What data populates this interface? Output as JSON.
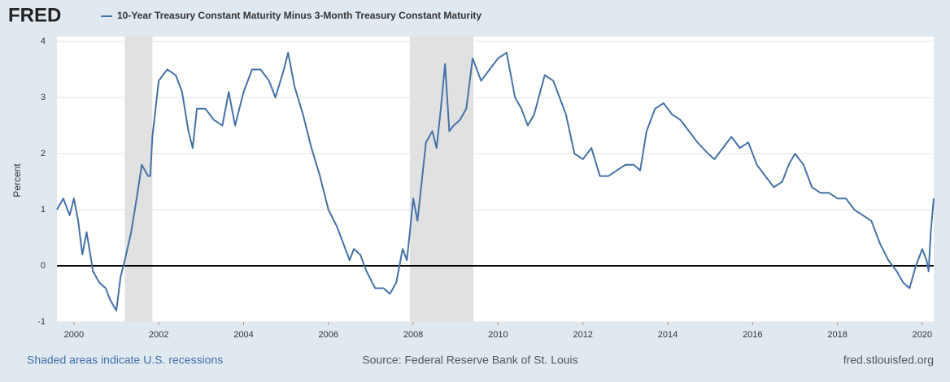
{
  "chart_data": {
    "type": "line",
    "logo": "FRED",
    "y_label": "Percent",
    "note": "Shaded areas indicate U.S. recessions",
    "source": "Source: Federal Reserve Bank of St. Louis",
    "url": "fred.stlouisfed.org",
    "xlim": [
      1999.6,
      2020.27
    ],
    "xticks": [
      2000,
      2002,
      2004,
      2006,
      2008,
      2010,
      2012,
      2014,
      2016,
      2018,
      2020
    ],
    "ylim": [
      -1,
      4
    ],
    "yticks": [
      -1,
      0,
      1,
      2,
      3,
      4
    ],
    "grid": true,
    "recessions": [
      [
        2001.2,
        2001.85
      ],
      [
        2007.92,
        2009.42
      ]
    ],
    "x": [
      1999.6,
      1999.75,
      1999.9,
      2000.0,
      2000.1,
      2000.2,
      2000.3,
      2000.45,
      2000.6,
      2000.75,
      2000.85,
      2001.0,
      2001.1,
      2001.2,
      2001.35,
      2001.5,
      2001.6,
      2001.75,
      2001.8,
      2001.85,
      2002.0,
      2002.2,
      2002.4,
      2002.55,
      2002.7,
      2002.8,
      2002.9,
      2003.1,
      2003.3,
      2003.5,
      2003.65,
      2003.8,
      2004.0,
      2004.2,
      2004.4,
      2004.6,
      2004.75,
      2004.95,
      2005.05,
      2005.2,
      2005.4,
      2005.6,
      2005.8,
      2006.0,
      2006.2,
      2006.35,
      2006.5,
      2006.6,
      2006.75,
      2006.9,
      2007.1,
      2007.3,
      2007.45,
      2007.6,
      2007.75,
      2007.85,
      2007.92,
      2008.0,
      2008.1,
      2008.2,
      2008.3,
      2008.45,
      2008.55,
      2008.65,
      2008.75,
      2008.85,
      2008.95,
      2009.1,
      2009.25,
      2009.4,
      2009.6,
      2009.8,
      2010.0,
      2010.2,
      2010.4,
      2010.55,
      2010.7,
      2010.85,
      2011.1,
      2011.3,
      2011.45,
      2011.6,
      2011.8,
      2012.0,
      2012.2,
      2012.4,
      2012.6,
      2012.8,
      2013.0,
      2013.2,
      2013.35,
      2013.5,
      2013.7,
      2013.9,
      2014.1,
      2014.3,
      2014.5,
      2014.7,
      2014.95,
      2015.1,
      2015.3,
      2015.5,
      2015.7,
      2015.9,
      2016.1,
      2016.3,
      2016.5,
      2016.7,
      2016.85,
      2017.0,
      2017.2,
      2017.4,
      2017.6,
      2017.8,
      2018.0,
      2018.2,
      2018.4,
      2018.6,
      2018.8,
      2019.0,
      2019.2,
      2019.4,
      2019.55,
      2019.7,
      2019.85,
      2020.0,
      2020.1,
      2020.15,
      2020.2,
      2020.27
    ],
    "series": [
      {
        "name": "10-Year Treasury Constant Maturity Minus 3-Month Treasury Constant Maturity",
        "color": "#4572a7",
        "values": [
          1.0,
          1.2,
          0.9,
          1.2,
          0.8,
          0.2,
          0.6,
          -0.1,
          -0.3,
          -0.4,
          -0.6,
          -0.8,
          -0.2,
          0.1,
          0.6,
          1.3,
          1.8,
          1.6,
          1.6,
          2.3,
          3.3,
          3.5,
          3.4,
          3.1,
          2.4,
          2.1,
          2.8,
          2.8,
          2.6,
          2.5,
          3.1,
          2.5,
          3.1,
          3.5,
          3.5,
          3.3,
          3.0,
          3.5,
          3.8,
          3.2,
          2.7,
          2.1,
          1.6,
          1.0,
          0.7,
          0.4,
          0.1,
          0.3,
          0.2,
          -0.1,
          -0.4,
          -0.4,
          -0.5,
          -0.3,
          0.3,
          0.1,
          0.6,
          1.2,
          0.8,
          1.5,
          2.2,
          2.4,
          2.1,
          2.8,
          3.6,
          2.4,
          2.5,
          2.6,
          2.8,
          3.7,
          3.3,
          3.5,
          3.7,
          3.8,
          3.0,
          2.8,
          2.5,
          2.7,
          3.4,
          3.3,
          3.0,
          2.7,
          2.0,
          1.9,
          2.1,
          1.6,
          1.6,
          1.7,
          1.8,
          1.8,
          1.7,
          2.4,
          2.8,
          2.9,
          2.7,
          2.6,
          2.4,
          2.2,
          2.0,
          1.9,
          2.1,
          2.3,
          2.1,
          2.2,
          1.8,
          1.6,
          1.4,
          1.5,
          1.8,
          2.0,
          1.8,
          1.4,
          1.3,
          1.3,
          1.2,
          1.2,
          1.0,
          0.9,
          0.8,
          0.4,
          0.1,
          -0.1,
          -0.3,
          -0.4,
          0.0,
          0.3,
          0.1,
          -0.1,
          0.6,
          1.2
        ]
      }
    ]
  }
}
